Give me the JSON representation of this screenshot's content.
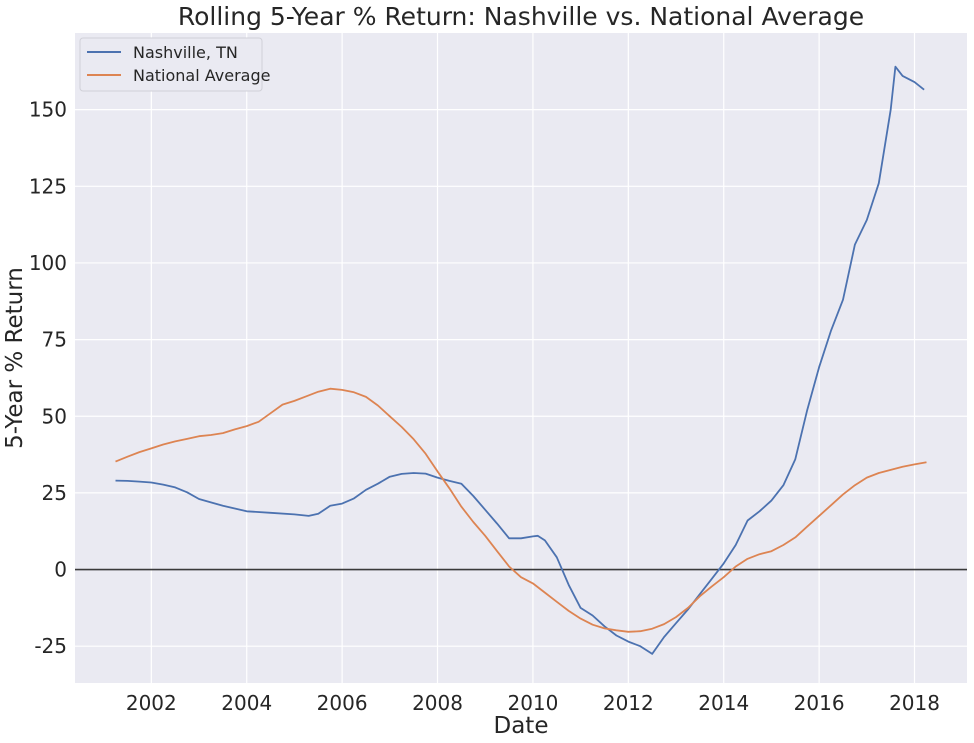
{
  "chart_data": {
    "type": "line",
    "title": "Rolling 5-Year % Return: Nashville vs. National Average",
    "xlabel": "Date",
    "ylabel": "5-Year % Return",
    "xlim": [
      2000.4,
      2019.1
    ],
    "ylim": [
      -37,
      175
    ],
    "x_ticks": [
      2002,
      2004,
      2006,
      2008,
      2010,
      2012,
      2014,
      2016,
      2018
    ],
    "y_ticks": [
      -25,
      0,
      25,
      50,
      75,
      100,
      125,
      150
    ],
    "grid": true,
    "legend_position": "top-left",
    "reference_line": {
      "y": 0,
      "color": "#3a3a3a"
    },
    "background_color": "#eaeaf2",
    "series": [
      {
        "name": "Nashville, TN",
        "color": "#4c72b0",
        "points": [
          [
            2001.25,
            29
          ],
          [
            2001.5,
            28.9
          ],
          [
            2001.75,
            28.7
          ],
          [
            2002.0,
            28.4
          ],
          [
            2002.25,
            27.7
          ],
          [
            2002.5,
            26.8
          ],
          [
            2002.75,
            25.2
          ],
          [
            2003.0,
            23.0
          ],
          [
            2003.25,
            21.9
          ],
          [
            2003.5,
            20.8
          ],
          [
            2003.75,
            19.9
          ],
          [
            2004.0,
            19.0
          ],
          [
            2004.5,
            18.5
          ],
          [
            2005.0,
            18.0
          ],
          [
            2005.3,
            17.5
          ],
          [
            2005.5,
            18.2
          ],
          [
            2005.75,
            20.8
          ],
          [
            2006.0,
            21.5
          ],
          [
            2006.25,
            23.2
          ],
          [
            2006.5,
            26.0
          ],
          [
            2006.75,
            28.0
          ],
          [
            2007.0,
            30.3
          ],
          [
            2007.25,
            31.2
          ],
          [
            2007.5,
            31.5
          ],
          [
            2007.75,
            31.3
          ],
          [
            2008.0,
            30.0
          ],
          [
            2008.25,
            28.9
          ],
          [
            2008.5,
            28.0
          ],
          [
            2008.75,
            24.0
          ],
          [
            2009.0,
            19.5
          ],
          [
            2009.25,
            15.0
          ],
          [
            2009.5,
            10.2
          ],
          [
            2009.75,
            10.2
          ],
          [
            2010.0,
            10.8
          ],
          [
            2010.1,
            11.0
          ],
          [
            2010.25,
            9.5
          ],
          [
            2010.5,
            4.0
          ],
          [
            2010.75,
            -5.0
          ],
          [
            2011.0,
            -12.5
          ],
          [
            2011.25,
            -15.0
          ],
          [
            2011.5,
            -18.5
          ],
          [
            2011.75,
            -21.5
          ],
          [
            2012.0,
            -23.5
          ],
          [
            2012.25,
            -25.0
          ],
          [
            2012.5,
            -27.5
          ],
          [
            2012.75,
            -22.0
          ],
          [
            2013.0,
            -17.5
          ],
          [
            2013.25,
            -13.0
          ],
          [
            2013.5,
            -8.0
          ],
          [
            2013.75,
            -3.0
          ],
          [
            2014.0,
            2.0
          ],
          [
            2014.25,
            8.0
          ],
          [
            2014.5,
            16.0
          ],
          [
            2014.75,
            19.0
          ],
          [
            2015.0,
            22.5
          ],
          [
            2015.25,
            27.5
          ],
          [
            2015.5,
            36.0
          ],
          [
            2015.75,
            52.0
          ],
          [
            2016.0,
            66.0
          ],
          [
            2016.25,
            78.0
          ],
          [
            2016.5,
            88.0
          ],
          [
            2016.75,
            106.0
          ],
          [
            2017.0,
            114.0
          ],
          [
            2017.25,
            126.0
          ],
          [
            2017.5,
            150.0
          ],
          [
            2017.6,
            164.0
          ],
          [
            2017.75,
            161.0
          ],
          [
            2018.0,
            159.0
          ],
          [
            2018.2,
            156.5
          ]
        ]
      },
      {
        "name": "National Average",
        "color": "#dd8452",
        "points": [
          [
            2001.25,
            35.2
          ],
          [
            2001.5,
            36.8
          ],
          [
            2001.75,
            38.3
          ],
          [
            2002.0,
            39.5
          ],
          [
            2002.25,
            40.8
          ],
          [
            2002.5,
            41.8
          ],
          [
            2002.75,
            42.6
          ],
          [
            2003.0,
            43.5
          ],
          [
            2003.25,
            43.9
          ],
          [
            2003.5,
            44.5
          ],
          [
            2003.75,
            45.7
          ],
          [
            2004.0,
            46.8
          ],
          [
            2004.25,
            48.2
          ],
          [
            2004.5,
            51.0
          ],
          [
            2004.75,
            53.8
          ],
          [
            2005.0,
            55.0
          ],
          [
            2005.25,
            56.5
          ],
          [
            2005.5,
            58.0
          ],
          [
            2005.75,
            59.0
          ],
          [
            2006.0,
            58.6
          ],
          [
            2006.25,
            57.8
          ],
          [
            2006.5,
            56.3
          ],
          [
            2006.75,
            53.5
          ],
          [
            2007.0,
            50.0
          ],
          [
            2007.25,
            46.5
          ],
          [
            2007.5,
            42.5
          ],
          [
            2007.75,
            37.8
          ],
          [
            2008.0,
            32.0
          ],
          [
            2008.25,
            26.5
          ],
          [
            2008.5,
            20.5
          ],
          [
            2008.75,
            15.5
          ],
          [
            2009.0,
            11.0
          ],
          [
            2009.25,
            6.0
          ],
          [
            2009.5,
            1.0
          ],
          [
            2009.75,
            -2.5
          ],
          [
            2010.0,
            -4.5
          ],
          [
            2010.25,
            -7.5
          ],
          [
            2010.5,
            -10.5
          ],
          [
            2010.75,
            -13.5
          ],
          [
            2011.0,
            -16.0
          ],
          [
            2011.25,
            -18.0
          ],
          [
            2011.5,
            -19.2
          ],
          [
            2011.75,
            -19.8
          ],
          [
            2012.0,
            -20.3
          ],
          [
            2012.25,
            -20.1
          ],
          [
            2012.5,
            -19.3
          ],
          [
            2012.75,
            -17.8
          ],
          [
            2013.0,
            -15.5
          ],
          [
            2013.25,
            -12.5
          ],
          [
            2013.5,
            -8.7
          ],
          [
            2013.75,
            -5.5
          ],
          [
            2014.0,
            -2.5
          ],
          [
            2014.25,
            1.0
          ],
          [
            2014.5,
            3.5
          ],
          [
            2014.75,
            5.0
          ],
          [
            2015.0,
            6.0
          ],
          [
            2015.25,
            8.0
          ],
          [
            2015.5,
            10.5
          ],
          [
            2015.75,
            14.0
          ],
          [
            2016.0,
            17.5
          ],
          [
            2016.25,
            21.0
          ],
          [
            2016.5,
            24.5
          ],
          [
            2016.75,
            27.5
          ],
          [
            2017.0,
            30.0
          ],
          [
            2017.25,
            31.5
          ],
          [
            2017.5,
            32.5
          ],
          [
            2017.75,
            33.5
          ],
          [
            2018.0,
            34.3
          ],
          [
            2018.25,
            35.0
          ]
        ]
      }
    ]
  }
}
